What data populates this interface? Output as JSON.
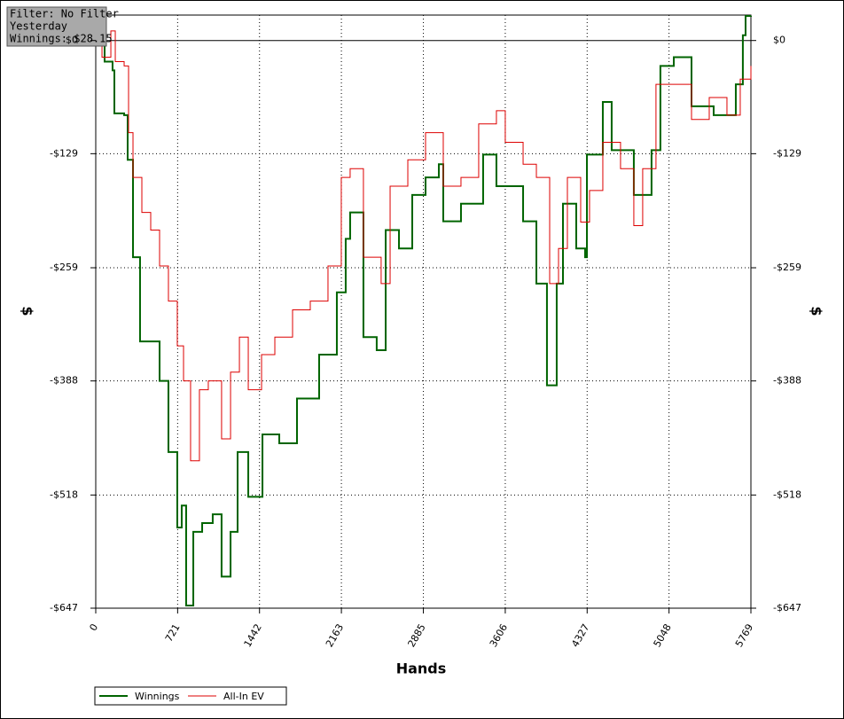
{
  "chart_data": {
    "type": "line",
    "info": [
      "Filter: No Filter",
      "Yesterday",
      "Winnings: $28.15"
    ],
    "xlabel": "Hands",
    "ylabel": "$",
    "xlim": [
      0,
      5769
    ],
    "xticks": [
      0,
      721,
      1442,
      2163,
      2885,
      3606,
      4327,
      5048,
      5769
    ],
    "ylim": [
      -647,
      29
    ],
    "yticks": [
      {
        "value": 0,
        "label": "$0"
      },
      {
        "value": -129,
        "label": "-$129"
      },
      {
        "value": -259,
        "label": "-$259"
      },
      {
        "value": -388,
        "label": "-$388"
      },
      {
        "value": -518,
        "label": "-$518"
      },
      {
        "value": -647,
        "label": "-$647"
      }
    ],
    "grid": true,
    "series": [
      {
        "name": "Winnings",
        "color": "#006400",
        "x": [
          0,
          78,
          148,
          164,
          250,
          281,
          328,
          390,
          484,
          562,
          640,
          718,
          757,
          796,
          859,
          937,
          1030,
          1108,
          1187,
          1249,
          1343,
          1468,
          1616,
          1772,
          1967,
          2123,
          2201,
          2240,
          2357,
          2474,
          2553,
          2670,
          2787,
          2904,
          3021,
          3060,
          3216,
          3411,
          3528,
          3763,
          3880,
          3973,
          4059,
          4114,
          4231,
          4309,
          4325,
          4465,
          4543,
          4738,
          4894,
          4972,
          5090,
          5246,
          5441,
          5636,
          5698,
          5722,
          5769
        ],
        "values": [
          6,
          -24,
          -34,
          -83,
          -85,
          -136,
          -247,
          -343,
          -343,
          -388,
          -469,
          -555,
          -530,
          -644,
          -560,
          -550,
          -540,
          -611,
          -560,
          -469,
          -520,
          -449,
          -459,
          -408,
          -358,
          -287,
          -226,
          -196,
          -338,
          -353,
          -216,
          -237,
          -176,
          -156,
          -141,
          -206,
          -186,
          -130,
          -166,
          -206,
          -277,
          -393,
          -277,
          -186,
          -237,
          -247,
          -130,
          -70,
          -125,
          -176,
          -125,
          -29,
          -19,
          -75,
          -85,
          -50,
          6,
          28,
          28.15
        ]
      },
      {
        "name": "All-In EV",
        "color": "#dd0000",
        "x": [
          0,
          55,
          133,
          172,
          250,
          289,
          328,
          406,
          484,
          562,
          640,
          718,
          773,
          835,
          913,
          991,
          1108,
          1187,
          1265,
          1343,
          1460,
          1577,
          1733,
          1889,
          2045,
          2162,
          2240,
          2357,
          2513,
          2592,
          2748,
          2904,
          3060,
          3216,
          3372,
          3528,
          3606,
          3763,
          3880,
          3997,
          4075,
          4153,
          4270,
          4348,
          4465,
          4621,
          4738,
          4816,
          4933,
          5090,
          5246,
          5402,
          5558,
          5675,
          5769
        ],
        "values": [
          6,
          -19,
          11,
          -24,
          -29,
          -105,
          -156,
          -196,
          -216,
          -257,
          -297,
          -348,
          -388,
          -479,
          -398,
          -388,
          -454,
          -378,
          -338,
          -398,
          -358,
          -338,
          -307,
          -297,
          -257,
          -156,
          -146,
          -247,
          -277,
          -166,
          -136,
          -105,
          -166,
          -156,
          -95,
          -80,
          -116,
          -141,
          -156,
          -277,
          -237,
          -156,
          -207,
          -171,
          -116,
          -146,
          -211,
          -146,
          -50,
          -50,
          -90,
          -65,
          -85,
          -44,
          -29
        ]
      }
    ]
  }
}
